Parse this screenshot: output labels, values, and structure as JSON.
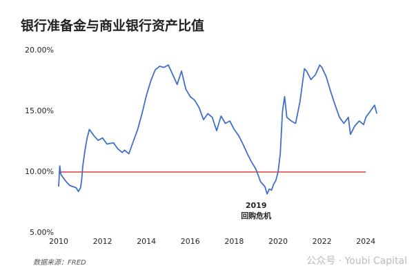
{
  "chart_data": {
    "type": "line",
    "title": "银行准备金与商业银行资产比值",
    "x": [
      2010.0,
      2010.05,
      2010.1,
      2010.3,
      2010.5,
      2010.8,
      2010.9,
      2011.0,
      2011.05,
      2011.1,
      2011.2,
      2011.3,
      2011.4,
      2011.6,
      2011.8,
      2012.0,
      2012.2,
      2012.5,
      2012.7,
      2012.9,
      2013.0,
      2013.2,
      2013.4,
      2013.6,
      2013.8,
      2014.0,
      2014.2,
      2014.4,
      2014.6,
      2014.8,
      2015.0,
      2015.2,
      2015.4,
      2015.6,
      2015.8,
      2016.0,
      2016.2,
      2016.4,
      2016.6,
      2016.8,
      2017.0,
      2017.2,
      2017.4,
      2017.6,
      2017.8,
      2018.0,
      2018.2,
      2018.4,
      2018.6,
      2018.8,
      2019.0,
      2019.2,
      2019.4,
      2019.5,
      2019.6,
      2019.7,
      2019.8,
      2019.9,
      2020.0,
      2020.1,
      2020.2,
      2020.3,
      2020.4,
      2020.6,
      2020.8,
      2021.0,
      2021.2,
      2021.3,
      2021.5,
      2021.7,
      2021.9,
      2022.0,
      2022.2,
      2022.4,
      2022.6,
      2022.8,
      2023.0,
      2023.2,
      2023.3,
      2023.5,
      2023.7,
      2023.9,
      2024.0,
      2024.2,
      2024.4,
      2024.5
    ],
    "values": [
      8.8,
      10.5,
      9.8,
      9.3,
      8.9,
      8.7,
      8.4,
      8.7,
      9.4,
      10.5,
      11.8,
      12.8,
      13.5,
      13.0,
      12.6,
      12.8,
      12.3,
      12.4,
      11.9,
      11.6,
      11.8,
      11.5,
      12.5,
      13.5,
      14.8,
      16.3,
      17.5,
      18.4,
      18.7,
      18.6,
      18.8,
      18.0,
      17.2,
      18.3,
      16.8,
      16.2,
      15.9,
      15.3,
      14.3,
      14.8,
      14.5,
      13.4,
      14.6,
      14.0,
      14.2,
      13.5,
      13.0,
      12.3,
      11.5,
      10.8,
      10.2,
      9.2,
      8.8,
      8.2,
      8.6,
      8.5,
      9.0,
      9.3,
      10.0,
      11.5,
      15.0,
      16.2,
      14.5,
      14.2,
      14.0,
      15.8,
      18.5,
      18.3,
      17.6,
      18.0,
      18.8,
      18.6,
      17.8,
      16.6,
      15.5,
      14.5,
      14.0,
      14.5,
      13.1,
      13.8,
      14.2,
      13.9,
      14.5,
      15.0,
      15.5,
      14.8
    ],
    "color": "#3f6fc6",
    "xlim": [
      2010,
      2024.5
    ],
    "xticks": [
      2010,
      2012,
      2014,
      2016,
      2018,
      2020,
      2022,
      2024
    ],
    "ylim": [
      5,
      20
    ],
    "yticks": [
      {
        "value": 5,
        "label": "5.00%"
      },
      {
        "value": 10,
        "label": "10.00%"
      },
      {
        "value": 15,
        "label": "15.00%"
      },
      {
        "value": 20,
        "label": "20.00%"
      }
    ],
    "reference_line": {
      "value": 10,
      "color": "#e03a3a"
    },
    "annotation": {
      "x": 2019.0,
      "lines": [
        "2019",
        "回购危机"
      ]
    },
    "source": "数据来源：FRED",
    "watermark": "公众号 · Youbi Capital"
  }
}
